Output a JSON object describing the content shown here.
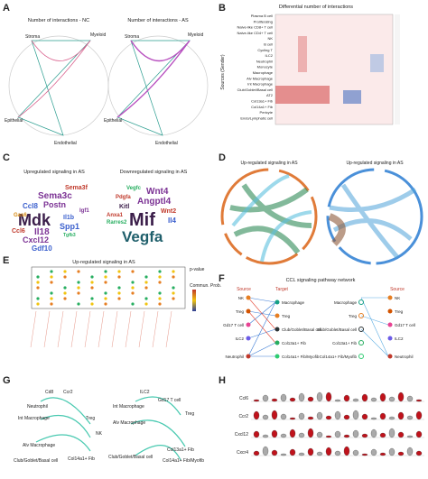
{
  "panels": {
    "A": {
      "label": "A",
      "titles": [
        "Number of interactions - NC",
        "Number of interactions - AS"
      ],
      "nodes": [
        "Stroma",
        "Myeloid",
        "Epithelial",
        "Endothelial"
      ]
    },
    "B": {
      "label": "B",
      "title": "Differential number of interactions",
      "y_label": "Sources (Sender)",
      "rows": [
        "Plasma B cell",
        "Proliferating",
        "Naive-like CD8+ T cell",
        "Naive-like CD4+ T cell",
        "NK",
        "B cell",
        "Cycling T",
        "ILC2",
        "Neutrophil",
        "Monocyte",
        "Macrophage",
        "Alv Macrophage",
        "Int Macrophage",
        "Club/Goblet/Basal cell",
        "AT2",
        "Col13a1+ Fib",
        "Col14a1+ Fib",
        "Pericyte",
        "Endo/Lymphatic cell"
      ]
    },
    "C": {
      "label": "C",
      "titles": [
        "Upregulated signaling in AS",
        "Downregulated signaling in AS"
      ],
      "up_words": [
        "Sema3f",
        "Sema3c",
        "Postn",
        "Ccl8",
        "Igf1",
        "Mdk",
        "Il1b",
        "Gas6",
        "Il18",
        "Spp1",
        "Ccl6",
        "Cxcl12",
        "Gdf10",
        "Tgfb3"
      ],
      "down_words": [
        "Vegfc",
        "Wnt4",
        "Pdgfa",
        "Angptl4",
        "Kitl",
        "Wnt2",
        "Anxa1",
        "Mif",
        "Il4",
        "Rarres2",
        "Vegfa"
      ]
    },
    "D": {
      "label": "D",
      "titles": [
        "Up-regulated signaling in AS",
        "Up-regulated signaling in AS"
      ]
    },
    "E": {
      "label": "E",
      "title": "Up-regulated signaling in AS",
      "legend": [
        "p-value",
        "Commun. Prob."
      ]
    },
    "F": {
      "label": "F",
      "title": "CCL signaling pathway network",
      "headers": [
        "Source",
        "Target",
        "Source"
      ],
      "sources": [
        "NK",
        "Treg",
        "Gd17 T cell",
        "ILC2",
        "Neutrophil"
      ],
      "targets": [
        "Macrophage",
        "Treg",
        "Club/Goblet/Basal cell",
        "Col13a1+ Fib",
        "Col14a1+ Fib/Myofib"
      ]
    },
    "G": {
      "label": "G",
      "left": [
        "Cd8",
        "Ccr2",
        "Neutrophil",
        "Treg",
        "NK",
        "Alv Macrophage",
        "Int Macrophage",
        "Club/Goblet/Basal cell",
        "Col14a1+ Fib"
      ],
      "right": [
        "ILC2",
        "Gd17 T cell",
        "Treg",
        "Int Macrophage",
        "Alv Macrophage",
        "Club/Goblet/Basal cell",
        "Col13a1+ Fib",
        "Col14a1+ Fib/Myofib"
      ]
    },
    "H": {
      "label": "H",
      "genes": [
        "Ccl6",
        "Ccr2",
        "Cxcl12",
        "Cxcr4"
      ]
    }
  }
}
